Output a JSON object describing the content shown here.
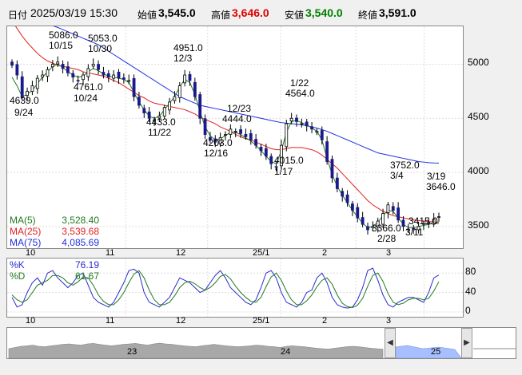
{
  "header": {
    "date_label": "日付",
    "datetime": "2025/03/19 15:30",
    "open_label": "始値",
    "open": "3,545.0",
    "high_label": "高値",
    "high": "3,646.0",
    "low_label": "安値",
    "low": "3,540.0",
    "close_label": "終値",
    "close": "3,591.0"
  },
  "colors": {
    "high": "#e00000",
    "low": "#008000",
    "ma5": "#1f7a1f",
    "ma25": "#e02020",
    "ma75": "#2030e0",
    "bear_body": "#1a1a8c",
    "k_line": "#2b2bcc",
    "d_line": "#1f7a1f",
    "volume": "#a8a8a8",
    "scroll_sel": "#a8bfff"
  },
  "ma_legend": [
    {
      "label": "MA(5)",
      "value": "3,528.40",
      "color": "#1f7a1f"
    },
    {
      "label": "MA(25)",
      "value": "3,539.68",
      "color": "#e02020"
    },
    {
      "label": "MA(75)",
      "value": "4,085.69",
      "color": "#2030e0"
    }
  ],
  "stoch_legend": [
    {
      "label": "%K",
      "value": "76.19",
      "color": "#2b2bcc"
    },
    {
      "label": "%D",
      "value": "61.67",
      "color": "#1f7a1f"
    }
  ],
  "scroll_labels": [
    "23",
    "24",
    "25"
  ],
  "chart_data": [
    {
      "type": "candlestick",
      "ylim": [
        3300,
        5350
      ],
      "yticks": [
        3500,
        4000,
        4500,
        5000
      ],
      "xtick_labels": [
        "10",
        "11",
        "12",
        "25/1",
        "2",
        "3"
      ],
      "annotations": [
        {
          "date": "9/24",
          "value": "4639.0"
        },
        {
          "date": "10/15",
          "value": "5086.0"
        },
        {
          "date": "10/24",
          "value": "4761.0"
        },
        {
          "date": "10/30",
          "value": "5053.0"
        },
        {
          "date": "11/22",
          "value": "4433.0"
        },
        {
          "date": "12/3",
          "value": "4951.0"
        },
        {
          "date": "12/16",
          "value": "4203.0"
        },
        {
          "date": "12/23",
          "value": "4444.0"
        },
        {
          "date": "1/17",
          "value": "4015.0"
        },
        {
          "date": "1/22",
          "value": "4564.0"
        },
        {
          "date": "2/28",
          "value": "3366.0"
        },
        {
          "date": "3/4",
          "value": "3752.0"
        },
        {
          "date": "3/11",
          "value": "3415.0"
        },
        {
          "date": "3/19",
          "value": "3646.0"
        }
      ],
      "close_path": [
        4990,
        4900,
        4690,
        4750,
        4800,
        4870,
        4900,
        4950,
        5000,
        5020,
        4960,
        4920,
        4880,
        4850,
        4900,
        4960,
        5000,
        4950,
        4900,
        4880,
        4900,
        4870,
        4860,
        4850,
        4700,
        4620,
        4550,
        4500,
        4480,
        4520,
        4600,
        4650,
        4700,
        4800,
        4900,
        4850,
        4700,
        4500,
        4350,
        4300,
        4280,
        4320,
        4350,
        4400,
        4380,
        4360,
        4330,
        4300,
        4250,
        4200,
        4150,
        4080,
        4050,
        4250,
        4450,
        4500,
        4470,
        4450,
        4430,
        4400,
        4380,
        4300,
        4100,
        3950,
        3850,
        3780,
        3720,
        3650,
        3580,
        3520,
        3470,
        3500,
        3550,
        3620,
        3700,
        3650,
        3560,
        3500,
        3470,
        3480,
        3500,
        3520,
        3540,
        3570,
        3591
      ],
      "ma5": [
        4880,
        4800,
        4700,
        4720,
        4760,
        4820,
        4880,
        4930,
        4980,
        5000,
        4970,
        4930,
        4900,
        4880,
        4890,
        4930,
        4960,
        4940,
        4910,
        4890,
        4880,
        4870,
        4860,
        4830,
        4740,
        4650,
        4580,
        4520,
        4500,
        4520,
        4580,
        4640,
        4700,
        4790,
        4860,
        4830,
        4720,
        4560,
        4420,
        4340,
        4300,
        4310,
        4340,
        4370,
        4370,
        4350,
        4320,
        4290,
        4250,
        4200,
        4150,
        4100,
        4080,
        4200,
        4370,
        4470,
        4480,
        4460,
        4440,
        4410,
        4380,
        4300,
        4130,
        3980,
        3870,
        3790,
        3720,
        3650,
        3590,
        3530,
        3490,
        3500,
        3540,
        3600,
        3650,
        3640,
        3580,
        3520,
        3490,
        3490,
        3500,
        3510,
        3520,
        3530,
        3528
      ],
      "ma25": [
        5400,
        5330,
        5260,
        5200,
        5150,
        5100,
        5060,
        5030,
        5010,
        4990,
        4980,
        4970,
        4960,
        4950,
        4930,
        4920,
        4910,
        4900,
        4890,
        4870,
        4850,
        4830,
        4800,
        4770,
        4740,
        4710,
        4690,
        4660,
        4640,
        4630,
        4620,
        4610,
        4600,
        4590,
        4580,
        4560,
        4540,
        4510,
        4490,
        4470,
        4450,
        4420,
        4400,
        4380,
        4350,
        4330,
        4310,
        4300,
        4280,
        4260,
        4240,
        4220,
        4210,
        4210,
        4220,
        4230,
        4230,
        4230,
        4220,
        4210,
        4190,
        4160,
        4120,
        4080,
        4040,
        3990,
        3940,
        3890,
        3840,
        3790,
        3740,
        3700,
        3670,
        3640,
        3620,
        3600,
        3590,
        3580,
        3570,
        3560,
        3555,
        3550,
        3545,
        3542,
        3540
      ],
      "ma75": [
        5450,
        5440,
        5430,
        5420,
        5410,
        5400,
        5385,
        5370,
        5355,
        5340,
        5320,
        5300,
        5280,
        5260,
        5240,
        5220,
        5200,
        5180,
        5150,
        5120,
        5090,
        5060,
        5030,
        5000,
        4970,
        4940,
        4910,
        4880,
        4850,
        4820,
        4790,
        4760,
        4730,
        4700,
        4680,
        4660,
        4640,
        4620,
        4610,
        4600,
        4590,
        4580,
        4570,
        4560,
        4550,
        4540,
        4530,
        4520,
        4510,
        4500,
        4490,
        4480,
        4470,
        4460,
        4455,
        4450,
        4445,
        4440,
        4430,
        4420,
        4410,
        4395,
        4380,
        4360,
        4340,
        4320,
        4300,
        4280,
        4260,
        4240,
        4220,
        4200,
        4180,
        4170,
        4160,
        4150,
        4140,
        4130,
        4120,
        4110,
        4100,
        4095,
        4090,
        4087,
        4086
      ]
    },
    {
      "type": "line",
      "ylim": [
        0,
        100
      ],
      "yticks": [
        0,
        40,
        80
      ],
      "series": [
        {
          "name": "%K",
          "values": [
            30,
            10,
            15,
            40,
            60,
            70,
            55,
            80,
            85,
            70,
            60,
            50,
            60,
            75,
            80,
            55,
            30,
            20,
            15,
            10,
            20,
            40,
            60,
            85,
            88,
            80,
            40,
            20,
            15,
            10,
            20,
            30,
            50,
            70,
            65,
            60,
            50,
            40,
            45,
            60,
            75,
            85,
            70,
            50,
            40,
            30,
            20,
            15,
            25,
            50,
            80,
            85,
            70,
            40,
            20,
            15,
            10,
            20,
            40,
            45,
            70,
            80,
            60,
            30,
            15,
            10,
            8,
            10,
            25,
            50,
            85,
            90,
            65,
            35,
            15,
            10,
            20,
            25,
            30,
            30,
            25,
            20,
            40,
            70,
            76
          ]
        },
        {
          "name": "%D",
          "values": [
            35,
            25,
            20,
            25,
            40,
            55,
            60,
            65,
            75,
            75,
            70,
            60,
            55,
            62,
            72,
            70,
            55,
            35,
            22,
            15,
            15,
            25,
            40,
            60,
            78,
            85,
            70,
            45,
            25,
            15,
            15,
            20,
            33,
            50,
            60,
            63,
            58,
            50,
            45,
            50,
            60,
            73,
            77,
            68,
            53,
            40,
            30,
            22,
            20,
            30,
            52,
            72,
            80,
            65,
            43,
            25,
            15,
            15,
            23,
            35,
            52,
            65,
            70,
            57,
            35,
            18,
            11,
            9,
            14,
            28,
            53,
            75,
            80,
            63,
            38,
            20,
            15,
            18,
            25,
            28,
            28,
            25,
            28,
            43,
            62
          ]
        }
      ]
    },
    {
      "type": "area",
      "xtick_labels": [
        "23",
        "24",
        "25"
      ],
      "values": [
        40,
        45,
        50,
        52,
        55,
        50,
        48,
        52,
        55,
        58,
        60,
        57,
        55,
        60,
        62,
        58,
        55,
        52,
        55,
        58,
        60,
        62,
        58,
        55,
        60,
        63,
        60,
        58,
        55,
        52,
        50,
        48,
        52,
        55,
        58,
        55,
        52,
        50,
        48,
        50,
        52,
        55,
        53,
        50,
        48,
        45,
        50,
        52,
        50,
        48,
        45,
        42,
        40,
        38,
        42,
        45,
        48,
        50,
        48,
        45,
        42,
        40,
        38
      ]
    }
  ]
}
